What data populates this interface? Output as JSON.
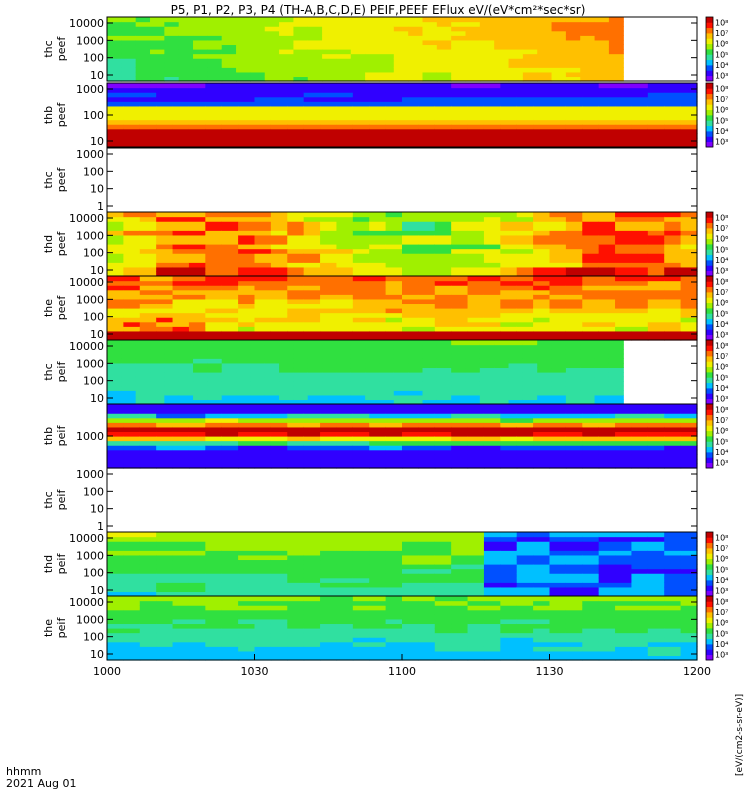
{
  "title": "P5, P1, P2, P3, P4 (TH-A,B,C,D,E) PEIF,PEEF EFlux eV/(eV*cm²*sec*sr)",
  "footer": {
    "hhmm_label": "hhmm",
    "date_label": "2021 Aug 01"
  },
  "colorbar_unit_label": "[eV/(cm2-s-sr-eV)]",
  "colors": {
    "spectrum": [
      "#7f00ff",
      "#3000ff",
      "#0050ff",
      "#00c0ff",
      "#30e0a0",
      "#30e040",
      "#a0f000",
      "#f0f000",
      "#ffc000",
      "#ff7000",
      "#ff1000",
      "#c00000"
    ]
  },
  "chart_data": {
    "type": "heatmap",
    "title": "P5, P1, P2, P3, P4 (TH-A,B,C,D,E) PEIF,PEEF EFlux eV/(eV*cm²*sec*sr)",
    "x_axis": {
      "label": "hhmm",
      "ticks": [
        "1000",
        "1030",
        "1100",
        "1130",
        "1200"
      ],
      "range": [
        "10:00",
        "12:00"
      ],
      "date": "2021 Aug 01"
    },
    "y_scale": "log",
    "z_scale": "log",
    "colorbar_ticks": [
      "10³",
      "10⁴",
      "10⁵",
      "10⁶",
      "10⁷",
      "10⁸"
    ],
    "panels": [
      {
        "label_top": "thc",
        "label_bottom": "peef",
        "yticks": [
          "10",
          "100",
          "1000",
          "10000"
        ],
        "data_end": 1145,
        "pattern": "thc_peef",
        "has_data": true
      },
      {
        "label_top": "thb",
        "label_bottom": "peef",
        "yticks": [
          "10",
          "100",
          "1000"
        ],
        "data_end": 1200,
        "pattern": "thb_peef",
        "has_data": true
      },
      {
        "label_top": "thc",
        "label_bottom": "peef",
        "yticks": [
          "1",
          "10",
          "100",
          "1000"
        ],
        "has_data": false
      },
      {
        "label_top": "thd",
        "label_bottom": "peef",
        "yticks": [
          "10",
          "100",
          "1000",
          "10000"
        ],
        "data_end": 1200,
        "pattern": "thd_peef",
        "has_data": true
      },
      {
        "label_top": "the",
        "label_bottom": "peef",
        "yticks": [
          "10",
          "100",
          "1000",
          "10000"
        ],
        "data_end": 1200,
        "pattern": "the_peef",
        "has_data": true
      },
      {
        "label_top": "thc",
        "label_bottom": "peif",
        "yticks": [
          "10",
          "100",
          "1000",
          "10000"
        ],
        "data_end": 1145,
        "pattern": "thc_peif",
        "has_data": true
      },
      {
        "label_top": "thb",
        "label_bottom": "peif",
        "yticks": [
          "1000"
        ],
        "data_end": 1200,
        "pattern": "thb_peif",
        "has_data": true
      },
      {
        "label_top": "thc",
        "label_bottom": "peif",
        "yticks": [
          "1",
          "10",
          "100",
          "1000"
        ],
        "has_data": false
      },
      {
        "label_top": "thd",
        "label_bottom": "peif",
        "yticks": [
          "10",
          "100",
          "1000",
          "10000"
        ],
        "data_end": 1200,
        "pattern": "thd_peif",
        "has_data": true
      },
      {
        "label_top": "the",
        "label_bottom": "peif",
        "yticks": [
          "10",
          "100",
          "1000",
          "10000"
        ],
        "data_end": 1200,
        "pattern": "the_peif",
        "has_data": true
      }
    ]
  }
}
